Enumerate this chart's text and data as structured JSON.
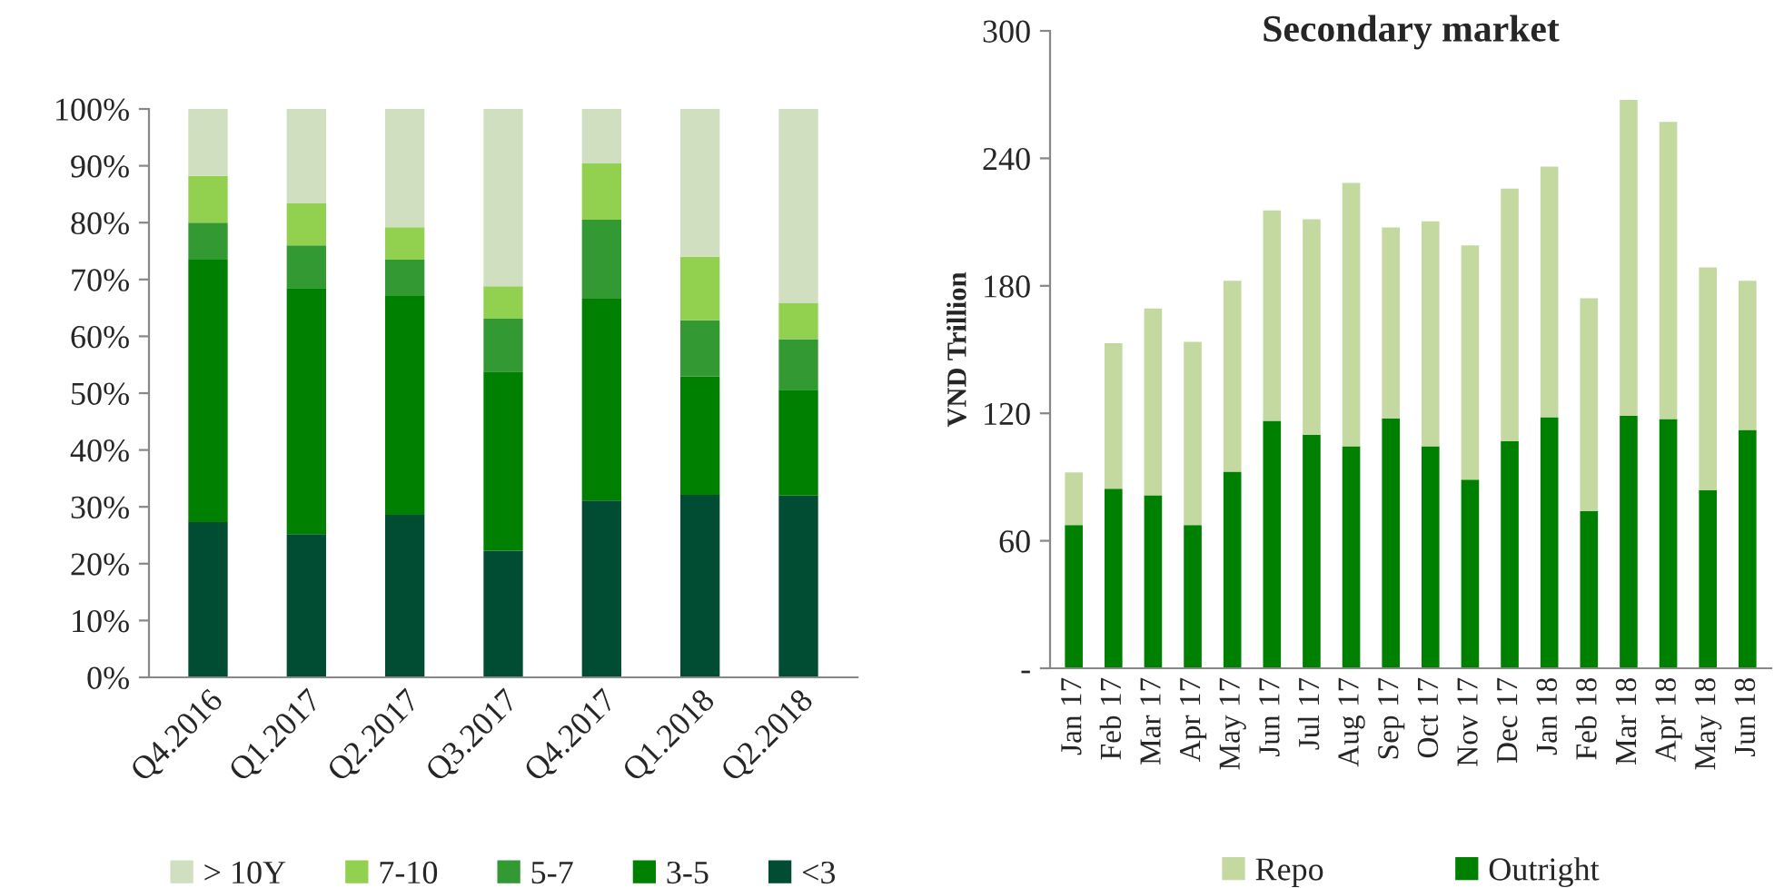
{
  "chart_data": [
    {
      "type": "bar",
      "stacked": true,
      "categories": [
        "Q4.2016",
        "Q1.2017",
        "Q2.2017",
        "Q3.2017",
        "Q4.2017",
        "Q1.2018",
        "Q2.2018"
      ],
      "series": [
        {
          "name": "<3",
          "color": "#004d33",
          "values": [
            27.3,
            25.2,
            28.6,
            22.3,
            31.1,
            32.1,
            32.0
          ]
        },
        {
          "name": "3-5",
          "color": "#008000",
          "values": [
            46.2,
            43.3,
            38.5,
            31.5,
            35.5,
            20.8,
            18.6
          ]
        },
        {
          "name": "5-7",
          "color": "#339933",
          "values": [
            6.5,
            7.5,
            6.4,
            9.3,
            13.9,
            9.9,
            8.9
          ]
        },
        {
          "name": "7-10",
          "color": "#92d050",
          "values": [
            8.2,
            7.4,
            5.7,
            5.7,
            9.9,
            11.2,
            6.3
          ]
        },
        {
          "name": "> 10Y",
          "color": "#d0dfc0",
          "values": [
            11.8,
            16.6,
            20.8,
            31.2,
            9.6,
            26.0,
            34.2
          ]
        }
      ],
      "ylim": [
        0,
        100
      ],
      "yticks": [
        {
          "value": 0,
          "label": "0%"
        },
        {
          "value": 10,
          "label": "10%"
        },
        {
          "value": 20,
          "label": "20%"
        },
        {
          "value": 30,
          "label": "30%"
        },
        {
          "value": 40,
          "label": "40%"
        },
        {
          "value": 50,
          "label": "50%"
        },
        {
          "value": 60,
          "label": "60%"
        },
        {
          "value": 70,
          "label": "70%"
        },
        {
          "value": 80,
          "label": "80%"
        },
        {
          "value": 90,
          "label": "90%"
        },
        {
          "value": 100,
          "label": "100%"
        }
      ],
      "grid": false,
      "legend": "bottom"
    },
    {
      "type": "bar",
      "stacked": true,
      "title": "Secondary market",
      "ylabel": "VND Trillion",
      "categories": [
        "Jan 17",
        "Feb 17",
        "Mar 17",
        "Apr 17",
        "May 17",
        "Jun 17",
        "Jul 17",
        "Aug 17",
        "Sep 17",
        "Oct 17",
        "Nov 17",
        "Dec 17",
        "Jan 18",
        "Feb 18",
        "Mar 18",
        "Apr 18",
        "May 18",
        "Jun 18"
      ],
      "series": [
        {
          "name": "Outright",
          "color": "#008000",
          "values": [
            67.4,
            84.5,
            81.4,
            67.4,
            92.5,
            116.5,
            109.9,
            104.5,
            117.6,
            104.5,
            88.8,
            106.8,
            118.2,
            73.9,
            118.8,
            117.3,
            83.9,
            112.2
          ]
        },
        {
          "name": "Repo",
          "color": "#c4d9a0",
          "values": [
            24.8,
            68.5,
            87.9,
            86.2,
            89.9,
            99.0,
            101.4,
            123.9,
            89.9,
            105.9,
            110.2,
            119.0,
            117.9,
            100.2,
            148.7,
            139.9,
            104.8,
            70.2
          ]
        }
      ],
      "ylim": [
        0,
        300
      ],
      "yticks": [
        {
          "value": 0,
          "label": "-"
        },
        60,
        120,
        180,
        240,
        300
      ],
      "grid": false,
      "legend": "bottom"
    }
  ]
}
